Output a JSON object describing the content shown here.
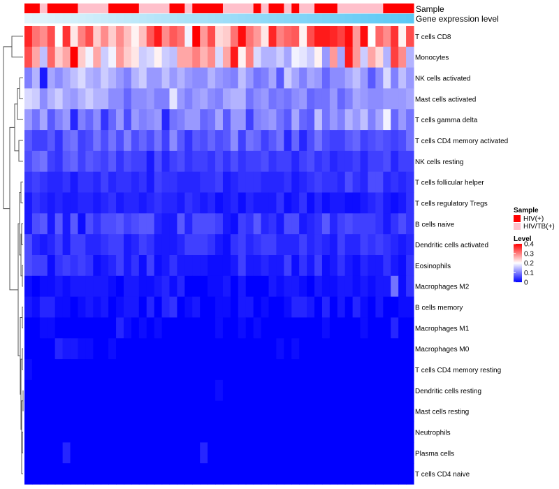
{
  "chart_data": {
    "type": "heatmap",
    "title": "",
    "annotation_tracks": [
      {
        "name": "Sample",
        "kind": "categorical"
      },
      {
        "name": "Gene expression level",
        "kind": "continuous"
      }
    ],
    "sample_groups": [
      "HIV(+)",
      "HIV(+)",
      "HIV/TB(+)",
      "HIV(+)",
      "HIV(+)",
      "HIV(+)",
      "HIV(+)",
      "HIV/TB(+)",
      "HIV/TB(+)",
      "HIV/TB(+)",
      "HIV/TB(+)",
      "HIV(+)",
      "HIV(+)",
      "HIV(+)",
      "HIV(+)",
      "HIV/TB(+)",
      "HIV/TB(+)",
      "HIV/TB(+)",
      "HIV/TB(+)",
      "HIV(+)",
      "HIV(+)",
      "HIV/TB(+)",
      "HIV(+)",
      "HIV(+)",
      "HIV(+)",
      "HIV(+)",
      "HIV/TB(+)",
      "HIV/TB(+)",
      "HIV/TB(+)",
      "HIV/TB(+)",
      "HIV(+)",
      "HIV/TB(+)",
      "HIV(+)",
      "HIV(+)",
      "HIV/TB(+)",
      "HIV(+)",
      "HIV/TB(+)",
      "HIV/TB(+)",
      "HIV(+)",
      "HIV(+)",
      "HIV(+)",
      "HIV/TB(+)",
      "HIV/TB(+)",
      "HIV/TB(+)",
      "HIV/TB(+)",
      "HIV/TB(+)",
      "HIV/TB(+)",
      "HIV(+)",
      "HIV(+)",
      "HIV(+)",
      "HIV(+)"
    ],
    "rows": [
      "T cells CD8",
      "Monocytes",
      "NK cells activated",
      "Mast cells activated",
      "T cells gamma delta",
      "T cells CD4 memory activated",
      "NK cells resting",
      "T cells follicular helper",
      "T cells regulatory  Tregs",
      "B cells naive",
      "Dendritic cells activated",
      "Eosinophils",
      "Macrophages M2",
      "B cells memory",
      "Macrophages M1",
      "Macrophages M0",
      "T cells CD4 memory resting",
      "Dendritic cells resting",
      "Mast cells resting",
      "Neutrophils",
      "Plasma cells",
      "T cells CD4 naive"
    ],
    "values": [
      [
        0.37,
        0.31,
        0.29,
        0.34,
        0.2,
        0.36,
        0.22,
        0.3,
        0.34,
        0.24,
        0.29,
        0.24,
        0.29,
        0.25,
        0.21,
        0.25,
        0.33,
        0.38,
        0.29,
        0.33,
        0.31,
        0.19,
        0.4,
        0.28,
        0.34,
        0.23,
        0.24,
        0.31,
        0.39,
        0.31,
        0.28,
        0.22,
        0.37,
        0.3,
        0.32,
        0.33,
        0.21,
        0.34,
        0.38,
        0.38,
        0.37,
        0.35,
        0.39,
        0.28,
        0.39,
        0.2,
        0.32,
        0.29,
        0.36,
        0.21,
        0.34
      ],
      [
        0.34,
        0.27,
        0.15,
        0.32,
        0.24,
        0.27,
        0.4,
        0.24,
        0.19,
        0.27,
        0.16,
        0.19,
        0.28,
        0.24,
        0.22,
        0.16,
        0.17,
        0.21,
        0.16,
        0.15,
        0.27,
        0.27,
        0.3,
        0.26,
        0.29,
        0.17,
        0.27,
        0.38,
        0.21,
        0.3,
        0.17,
        0.14,
        0.14,
        0.16,
        0.13,
        0.19,
        0.18,
        0.16,
        0.21,
        0.12,
        0.28,
        0.13,
        0.38,
        0.28,
        0.16,
        0.27,
        0.23,
        0.14,
        0.35,
        0.29,
        0.14
      ],
      [
        0.1,
        0.14,
        0.02,
        0.13,
        0.11,
        0.13,
        0.15,
        0.17,
        0.14,
        0.13,
        0.16,
        0.14,
        0.12,
        0.1,
        0.14,
        0.16,
        0.12,
        0.12,
        0.15,
        0.12,
        0.14,
        0.12,
        0.11,
        0.11,
        0.14,
        0.12,
        0.11,
        0.1,
        0.15,
        0.12,
        0.09,
        0.1,
        0.13,
        0.07,
        0.16,
        0.13,
        0.1,
        0.13,
        0.12,
        0.08,
        0.11,
        0.11,
        0.13,
        0.15,
        0.12,
        0.07,
        0.11,
        0.17,
        0.1,
        0.15,
        0.12
      ],
      [
        0.17,
        0.16,
        0.11,
        0.14,
        0.16,
        0.13,
        0.12,
        0.14,
        0.16,
        0.14,
        0.14,
        0.11,
        0.11,
        0.08,
        0.11,
        0.11,
        0.12,
        0.1,
        0.1,
        0.18,
        0.12,
        0.1,
        0.12,
        0.13,
        0.11,
        0.1,
        0.13,
        0.14,
        0.14,
        0.09,
        0.11,
        0.12,
        0.09,
        0.1,
        0.09,
        0.11,
        0.12,
        0.08,
        0.09,
        0.09,
        0.12,
        0.08,
        0.1,
        0.13,
        0.12,
        0.11,
        0.11,
        0.12,
        0.12,
        0.12,
        0.13
      ],
      [
        0.12,
        0.09,
        0.13,
        0.07,
        0.1,
        0.12,
        0.03,
        0.1,
        0.08,
        0.11,
        0.04,
        0.08,
        0.12,
        0.06,
        0.12,
        0.1,
        0.11,
        0.12,
        0.03,
        0.09,
        0.1,
        0.12,
        0.12,
        0.08,
        0.09,
        0.13,
        0.07,
        0.12,
        0.12,
        0.05,
        0.1,
        0.11,
        0.12,
        0.09,
        0.07,
        0.13,
        0.08,
        0.07,
        0.15,
        0.09,
        0.12,
        0.1,
        0.14,
        0.12,
        0.15,
        0.1,
        0.13,
        0.19,
        0.08,
        0.12,
        0.09
      ],
      [
        0.07,
        0.05,
        0.05,
        0.07,
        0.04,
        0.08,
        0.09,
        0.05,
        0.06,
        0.09,
        0.06,
        0.09,
        0.06,
        0.1,
        0.06,
        0.08,
        0.06,
        0.09,
        0.05,
        0.11,
        0.07,
        0.04,
        0.07,
        0.06,
        0.08,
        0.06,
        0.07,
        0.11,
        0.05,
        0.09,
        0.08,
        0.05,
        0.07,
        0.09,
        0.03,
        0.08,
        0.03,
        0.06,
        0.09,
        0.06,
        0.05,
        0.05,
        0.07,
        0.08,
        0.05,
        0.06,
        0.07,
        0.06,
        0.05,
        0.06,
        0.09
      ],
      [
        0.06,
        0.08,
        0.09,
        0.05,
        0.04,
        0.07,
        0.08,
        0.05,
        0.07,
        0.06,
        0.05,
        0.07,
        0.04,
        0.06,
        0.05,
        0.05,
        0.02,
        0.06,
        0.03,
        0.05,
        0.06,
        0.04,
        0.05,
        0.05,
        0.04,
        0.06,
        0.04,
        0.06,
        0.04,
        0.05,
        0.05,
        0.06,
        0.04,
        0.05,
        0.05,
        0.03,
        0.05,
        0.06,
        0.04,
        0.05,
        0.03,
        0.04,
        0.04,
        0.05,
        0.03,
        0.05,
        0.05,
        0.06,
        0.03,
        0.05,
        0.05
      ],
      [
        0.04,
        0.05,
        0.04,
        0.03,
        0.03,
        0.04,
        0.02,
        0.04,
        0.04,
        0.03,
        0.05,
        0.03,
        0.04,
        0.04,
        0.03,
        0.04,
        0.02,
        0.05,
        0.04,
        0.04,
        0.03,
        0.03,
        0.03,
        0.04,
        0.04,
        0.05,
        0.02,
        0.03,
        0.04,
        0.04,
        0.04,
        0.03,
        0.03,
        0.03,
        0.04,
        0.02,
        0.03,
        0.04,
        0.05,
        0.04,
        0.04,
        0.03,
        0.06,
        0.04,
        0.03,
        0.06,
        0.06,
        0.03,
        0.04,
        0.03,
        0.04
      ],
      [
        0.02,
        0.04,
        0.03,
        0.02,
        0.03,
        0.02,
        0.02,
        0.03,
        0.03,
        0.02,
        0.03,
        0.04,
        0.02,
        0.03,
        0.03,
        0.02,
        0.03,
        0.04,
        0.03,
        0.03,
        0.02,
        0.04,
        0.03,
        0.02,
        0.03,
        0.01,
        0.02,
        0.03,
        0.01,
        0.03,
        0.02,
        0.02,
        0.02,
        0.04,
        0.01,
        0.02,
        0.04,
        0.01,
        0.03,
        0.01,
        0.02,
        0.02,
        0.01,
        0.01,
        0.02,
        0.03,
        0.04,
        0.02,
        0.01,
        0.02,
        0.04
      ],
      [
        0.02,
        0.06,
        0.07,
        0.02,
        0.07,
        0.02,
        0.07,
        0.01,
        0.06,
        0.04,
        0.06,
        0.06,
        0.07,
        0.05,
        0.06,
        0.07,
        0.07,
        0.03,
        0.02,
        0.02,
        0.07,
        0.03,
        0.06,
        0.06,
        0.06,
        0.05,
        0.02,
        0.01,
        0.05,
        0.04,
        0.07,
        0.03,
        0.04,
        0.02,
        0.06,
        0.06,
        0.02,
        0.03,
        0.04,
        0.07,
        0.03,
        0.05,
        0.06,
        0.05,
        0.05,
        0.05,
        0.04,
        0.02,
        0.04,
        0.06,
        0.04
      ],
      [
        0.06,
        0.03,
        0.02,
        0.03,
        0.05,
        0.02,
        0.05,
        0.05,
        0.03,
        0.03,
        0.04,
        0.05,
        0.05,
        0.02,
        0.03,
        0.05,
        0.04,
        0.02,
        0.02,
        0.02,
        0.03,
        0.05,
        0.05,
        0.05,
        0.04,
        0.02,
        0.01,
        0.04,
        0.05,
        0.03,
        0.04,
        0.05,
        0.05,
        0.03,
        0.03,
        0.03,
        0.05,
        0.03,
        0.04,
        0.03,
        0.02,
        0.05,
        0.03,
        0.03,
        0.05,
        0.04,
        0.05,
        0.04,
        0.03,
        0.02,
        0.03
      ],
      [
        0.06,
        0.05,
        0.05,
        0.01,
        0.04,
        0.05,
        0.04,
        0.05,
        0.04,
        0.01,
        0.02,
        0.03,
        0.05,
        0.02,
        0.04,
        0.01,
        0.05,
        0.01,
        0.02,
        0.04,
        0.02,
        0.02,
        0.02,
        0.02,
        0.01,
        0.01,
        0.01,
        0.02,
        0.05,
        0.02,
        0.02,
        0.03,
        0.02,
        0.02,
        0.05,
        0.01,
        0.04,
        0.02,
        0.05,
        0.01,
        0.02,
        0.04,
        0.02,
        0.01,
        0.03,
        0.02,
        0.02,
        0.04,
        0.02,
        0.01,
        0.04
      ],
      [
        0.01,
        0.0,
        0.01,
        0.01,
        0.02,
        0.01,
        0.02,
        0.02,
        0.02,
        0.02,
        0.02,
        0.01,
        0.0,
        0.02,
        0.02,
        0.01,
        0.01,
        0.02,
        0.03,
        0.01,
        0.03,
        0.0,
        0.0,
        0.0,
        0.01,
        0.01,
        0.02,
        0.0,
        0.02,
        0.0,
        0.0,
        0.0,
        0.02,
        0.01,
        0.02,
        0.02,
        0.01,
        0.0,
        0.02,
        0.01,
        0.01,
        0.02,
        0.02,
        0.01,
        0.02,
        0.01,
        0.02,
        0.02,
        0.09,
        0.01,
        0.04
      ],
      [
        0.02,
        0.01,
        0.03,
        0.03,
        0.01,
        0.01,
        0.0,
        0.01,
        0.02,
        0.01,
        0.02,
        0.0,
        0.01,
        0.02,
        0.02,
        0.0,
        0.03,
        0.0,
        0.03,
        0.04,
        0.0,
        0.01,
        0.02,
        0.0,
        0.0,
        0.01,
        0.01,
        0.0,
        0.02,
        0.02,
        0.0,
        0.01,
        0.0,
        0.0,
        0.01,
        0.03,
        0.03,
        0.02,
        0.0,
        0.03,
        0.0,
        0.02,
        0.0,
        0.03,
        0.01,
        0.0,
        0.02,
        0.0,
        0.0,
        0.01,
        0.01
      ],
      [
        0.0,
        0.0,
        0.01,
        0.01,
        0.0,
        0.0,
        0.0,
        0.0,
        0.0,
        0.0,
        0.0,
        0.0,
        0.03,
        0.01,
        0.0,
        0.01,
        0.0,
        0.01,
        0.0,
        0.0,
        0.0,
        0.0,
        0.0,
        0.0,
        0.0,
        0.01,
        0.0,
        0.0,
        0.01,
        0.0,
        0.01,
        0.0,
        0.0,
        0.0,
        0.0,
        0.0,
        0.0,
        0.0,
        0.0,
        0.01,
        0.0,
        0.0,
        0.0,
        0.0,
        0.01,
        0.0,
        0.0,
        0.0,
        0.03,
        0.0,
        0.0
      ],
      [
        0.0,
        0.0,
        0.0,
        0.0,
        0.03,
        0.02,
        0.02,
        0.01,
        0.01,
        0.0,
        0.0,
        0.01,
        0.0,
        0.0,
        0.0,
        0.0,
        0.0,
        0.0,
        0.0,
        0.0,
        0.0,
        0.0,
        0.0,
        0.0,
        0.0,
        0.0,
        0.0,
        0.0,
        0.0,
        0.0,
        0.0,
        0.0,
        0.0,
        0.01,
        0.0,
        0.01,
        0.0,
        0.0,
        0.0,
        0.0,
        0.0,
        0.0,
        0.0,
        0.0,
        0.0,
        0.0,
        0.0,
        0.0,
        0.0,
        0.0,
        0.0
      ],
      [
        0.01,
        0.0,
        0.0,
        0.0,
        0.0,
        0.0,
        0.0,
        0.0,
        0.0,
        0.0,
        0.0,
        0.0,
        0.0,
        0.0,
        0.0,
        0.0,
        0.0,
        0.0,
        0.0,
        0.0,
        0.0,
        0.0,
        0.0,
        0.0,
        0.0,
        0.0,
        0.0,
        0.0,
        0.0,
        0.0,
        0.0,
        0.0,
        0.0,
        0.0,
        0.0,
        0.0,
        0.0,
        0.0,
        0.0,
        0.0,
        0.0,
        0.0,
        0.0,
        0.0,
        0.0,
        0.0,
        0.0,
        0.0,
        0.0,
        0.0,
        0.0
      ],
      [
        0.0,
        0.0,
        0.0,
        0.0,
        0.0,
        0.0,
        0.0,
        0.0,
        0.0,
        0.0,
        0.0,
        0.0,
        0.0,
        0.0,
        0.0,
        0.0,
        0.0,
        0.0,
        0.0,
        0.0,
        0.0,
        0.0,
        0.0,
        0.0,
        0.0,
        0.01,
        0.0,
        0.0,
        0.0,
        0.0,
        0.0,
        0.0,
        0.0,
        0.0,
        0.0,
        0.0,
        0.0,
        0.0,
        0.0,
        0.0,
        0.0,
        0.0,
        0.0,
        0.0,
        0.0,
        0.0,
        0.0,
        0.0,
        0.0,
        0.0,
        0.0
      ],
      [
        0.0,
        0.0,
        0.0,
        0.0,
        0.0,
        0.0,
        0.0,
        0.0,
        0.0,
        0.0,
        0.0,
        0.0,
        0.0,
        0.0,
        0.0,
        0.0,
        0.0,
        0.0,
        0.0,
        0.0,
        0.0,
        0.0,
        0.0,
        0.0,
        0.0,
        0.0,
        0.0,
        0.0,
        0.0,
        0.0,
        0.0,
        0.0,
        0.0,
        0.0,
        0.0,
        0.0,
        0.0,
        0.0,
        0.0,
        0.0,
        0.0,
        0.0,
        0.0,
        0.0,
        0.0,
        0.0,
        0.0,
        0.0,
        0.0,
        0.0,
        0.0
      ],
      [
        0.0,
        0.0,
        0.0,
        0.0,
        0.0,
        0.0,
        0.0,
        0.0,
        0.0,
        0.0,
        0.0,
        0.0,
        0.0,
        0.0,
        0.0,
        0.0,
        0.0,
        0.0,
        0.0,
        0.0,
        0.0,
        0.0,
        0.0,
        0.0,
        0.0,
        0.0,
        0.0,
        0.0,
        0.0,
        0.0,
        0.0,
        0.0,
        0.0,
        0.0,
        0.0,
        0.0,
        0.0,
        0.0,
        0.0,
        0.0,
        0.0,
        0.0,
        0.0,
        0.0,
        0.0,
        0.0,
        0.0,
        0.0,
        0.0,
        0.0,
        0.0
      ],
      [
        0.0,
        0.0,
        0.0,
        0.0,
        0.0,
        0.03,
        0.0,
        0.0,
        0.0,
        0.0,
        0.0,
        0.0,
        0.0,
        0.0,
        0.0,
        0.0,
        0.0,
        0.0,
        0.0,
        0.0,
        0.0,
        0.0,
        0.0,
        0.03,
        0.0,
        0.0,
        0.0,
        0.0,
        0.0,
        0.0,
        0.0,
        0.0,
        0.0,
        0.0,
        0.0,
        0.0,
        0.0,
        0.0,
        0.0,
        0.0,
        0.0,
        0.0,
        0.0,
        0.0,
        0.0,
        0.0,
        0.0,
        0.0,
        0.0,
        0.0,
        0.0
      ],
      [
        0.0,
        0.0,
        0.0,
        0.0,
        0.0,
        0.0,
        0.0,
        0.0,
        0.0,
        0.0,
        0.0,
        0.0,
        0.0,
        0.0,
        0.0,
        0.0,
        0.0,
        0.0,
        0.0,
        0.0,
        0.0,
        0.0,
        0.0,
        0.0,
        0.0,
        0.0,
        0.0,
        0.0,
        0.0,
        0.0,
        0.0,
        0.0,
        0.0,
        0.0,
        0.0,
        0.0,
        0.0,
        0.0,
        0.0,
        0.0,
        0.0,
        0.0,
        0.0,
        0.0,
        0.0,
        0.0,
        0.0,
        0.0,
        0.0,
        0.0,
        0.0
      ]
    ],
    "legend": {
      "sample_title": "Sample",
      "sample_entries": [
        {
          "label": "HIV(+)",
          "color": "#ff0000"
        },
        {
          "label": "HIV/TB(+)",
          "color": "#ffc0cb"
        }
      ],
      "level_title": "Level",
      "level_ticks": [
        "0",
        "0.1",
        "0.2",
        "0.3",
        "0.4"
      ],
      "level_range": [
        0,
        0.4
      ]
    },
    "colors": {
      "low": "#0000ff",
      "mid": "#ffffff",
      "high": "#ff0000",
      "expr_start": "#e4f4fb",
      "expr_end": "#5bc8f5"
    }
  }
}
